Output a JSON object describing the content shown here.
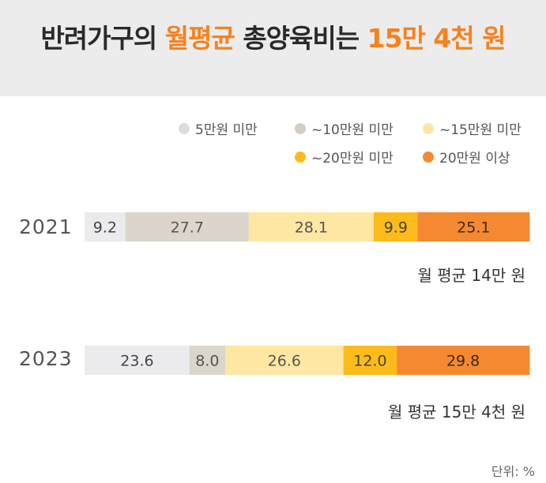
{
  "title": {
    "part1": "반려가구의 ",
    "accent1": "월평균",
    "part2": " 총양육비는 ",
    "accent2": "15만 4천 원"
  },
  "colors": {
    "accent": "#f58220",
    "title_band": "#ececec"
  },
  "chart_data": {
    "type": "bar",
    "orientation": "horizontal-stacked",
    "categories": [
      "2021",
      "2023"
    ],
    "series": [
      {
        "name": "5만원 미만",
        "color": "#ebebed",
        "values": [
          9.2,
          23.6
        ]
      },
      {
        "name": "~10만원 미만",
        "color": "#dbd5cc",
        "values": [
          27.7,
          8.0
        ]
      },
      {
        "name": "~15만원 미만",
        "color": "#fde7a3",
        "values": [
          28.1,
          26.6
        ]
      },
      {
        "name": "~20만원 미만",
        "color": "#fdbb1b",
        "values": [
          9.9,
          12.0
        ]
      },
      {
        "name": "20만원 이상",
        "color": "#f58932",
        "values": [
          25.1,
          29.8
        ]
      }
    ],
    "data_labels": [
      [
        "9.2",
        "27.7",
        "28.1",
        "9.9",
        "25.1"
      ],
      [
        "23.6",
        "8.0",
        "26.6",
        "12.0",
        "29.8"
      ]
    ],
    "annotations": [
      "월 평균 14만 원",
      "월 평균 15만 4천 원"
    ],
    "unit": "단위: %",
    "legend_position": "top-right",
    "grid": false
  }
}
